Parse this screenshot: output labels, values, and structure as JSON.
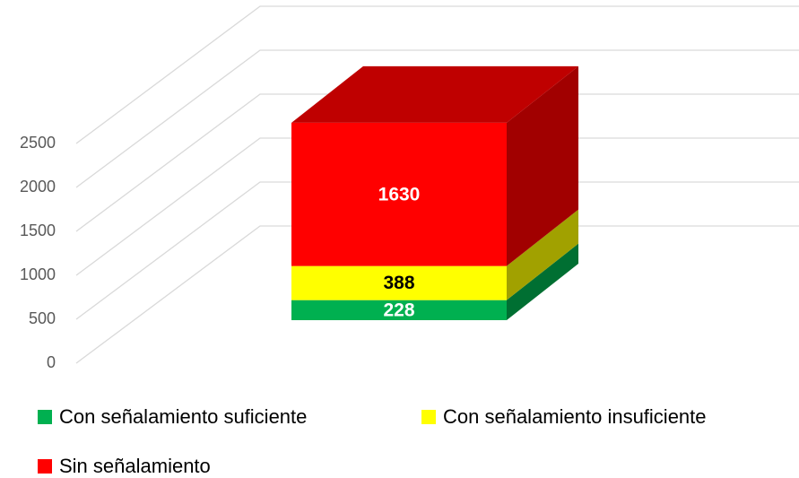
{
  "chart_data": {
    "type": "bar3d_stacked",
    "categories": [
      null
    ],
    "series": [
      {
        "name": "Con señalamiento suficiente",
        "color": "#00b050",
        "label_color": "#ffffff",
        "values": [
          228
        ]
      },
      {
        "name": "Con señalamiento insuficiente",
        "color": "#ffff00",
        "label_color": "#000000",
        "values": [
          388
        ]
      },
      {
        "name": "Sin señalamiento",
        "color": "#ff0000",
        "label_color": "#ffffff",
        "values": [
          1630
        ]
      }
    ],
    "ylim": [
      0,
      2500
    ],
    "yticks": [
      0,
      500,
      1000,
      1500,
      2000,
      2500
    ],
    "grid": true,
    "legend": "bottom"
  }
}
